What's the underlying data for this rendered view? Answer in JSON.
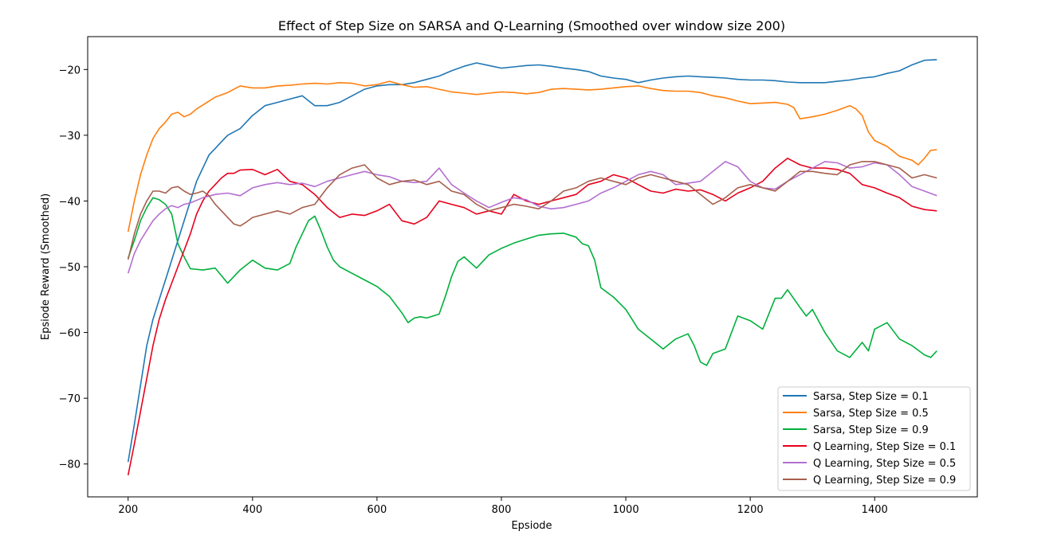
{
  "chart_data": {
    "type": "line",
    "title": "Effect of Step Size on SARSA and Q-Learning (Smoothed over window size 200)",
    "xlabel": "Epsiode",
    "ylabel": "Epsiode Reward (Smoothed)",
    "xlim": [
      135,
      1565
    ],
    "ylim": [
      -85,
      -15
    ],
    "xticks": [
      200,
      400,
      600,
      800,
      1000,
      1200,
      1400
    ],
    "yticks": [
      -80,
      -70,
      -60,
      -50,
      -40,
      -30,
      -20
    ],
    "xtick_labels": [
      "200",
      "400",
      "600",
      "800",
      "1000",
      "1200",
      "1400"
    ],
    "ytick_labels": [
      "−80",
      "−70",
      "−60",
      "−50",
      "−40",
      "−30",
      "−20"
    ],
    "grid": false,
    "legend_position": "lower right",
    "series": [
      {
        "name": "Sarsa, Step Size = 0.1",
        "color": "#1f77b4",
        "x": [
          200,
          210,
          220,
          230,
          240,
          250,
          260,
          270,
          280,
          290,
          300,
          310,
          320,
          330,
          340,
          350,
          360,
          370,
          380,
          400,
          420,
          440,
          460,
          480,
          500,
          520,
          540,
          560,
          580,
          600,
          620,
          640,
          660,
          680,
          700,
          720,
          740,
          760,
          780,
          800,
          820,
          840,
          860,
          880,
          900,
          920,
          940,
          960,
          980,
          1000,
          1020,
          1040,
          1060,
          1080,
          1100,
          1120,
          1140,
          1160,
          1180,
          1200,
          1220,
          1240,
          1260,
          1280,
          1300,
          1320,
          1340,
          1360,
          1380,
          1400,
          1420,
          1440,
          1460,
          1480,
          1500
        ],
        "y": [
          -79.7,
          -74,
          -68,
          -62,
          -58,
          -55,
          -52,
          -49,
          -46,
          -43,
          -40,
          -37,
          -35,
          -33,
          -32,
          -31,
          -30,
          -29.5,
          -29,
          -27,
          -25.5,
          -25,
          -24.5,
          -24,
          -25.5,
          -25.5,
          -25,
          -24,
          -23,
          -22.5,
          -22.3,
          -22.3,
          -22,
          -21.5,
          -21,
          -20.2,
          -19.5,
          -19,
          -19.4,
          -19.8,
          -19.6,
          -19.4,
          -19.3,
          -19.5,
          -19.8,
          -20,
          -20.3,
          -21,
          -21.3,
          -21.5,
          -22,
          -21.6,
          -21.3,
          -21.1,
          -21,
          -21.1,
          -21.2,
          -21.3,
          -21.5,
          -21.6,
          -21.6,
          -21.7,
          -21.9,
          -22,
          -22,
          -22,
          -21.8,
          -21.6,
          -21.3,
          -21.1,
          -20.6,
          -20.2,
          -19.3,
          -18.6,
          -18.5
        ]
      },
      {
        "name": "Sarsa, Step Size = 0.5",
        "color": "#ff7f0e",
        "x": [
          200,
          210,
          220,
          230,
          240,
          250,
          260,
          270,
          280,
          290,
          300,
          310,
          320,
          330,
          340,
          360,
          380,
          400,
          420,
          440,
          460,
          480,
          500,
          520,
          540,
          560,
          580,
          600,
          620,
          640,
          660,
          680,
          700,
          720,
          740,
          760,
          780,
          800,
          820,
          840,
          860,
          880,
          900,
          920,
          940,
          960,
          980,
          1000,
          1020,
          1040,
          1060,
          1080,
          1100,
          1120,
          1140,
          1160,
          1180,
          1200,
          1220,
          1240,
          1260,
          1270,
          1280,
          1300,
          1320,
          1340,
          1360,
          1370,
          1380,
          1390,
          1400,
          1420,
          1440,
          1460,
          1470,
          1480,
          1490,
          1500
        ],
        "y": [
          -44.7,
          -40,
          -36,
          -33,
          -30.5,
          -29,
          -28,
          -26.8,
          -26.5,
          -27.2,
          -26.8,
          -26,
          -25.4,
          -24.8,
          -24.2,
          -23.5,
          -22.5,
          -22.8,
          -22.8,
          -22.5,
          -22.4,
          -22.2,
          -22.1,
          -22.2,
          -22,
          -22.1,
          -22.5,
          -22.3,
          -21.8,
          -22.3,
          -22.7,
          -22.6,
          -23,
          -23.4,
          -23.6,
          -23.8,
          -23.6,
          -23.4,
          -23.5,
          -23.7,
          -23.5,
          -23.0,
          -22.9,
          -23.0,
          -23.1,
          -23.0,
          -22.8,
          -22.6,
          -22.5,
          -22.9,
          -23.2,
          -23.3,
          -23.3,
          -23.5,
          -24.0,
          -24.3,
          -24.8,
          -25.2,
          -25.1,
          -25.0,
          -25.3,
          -25.8,
          -27.5,
          -27.2,
          -26.8,
          -26.2,
          -25.5,
          -26.0,
          -27.0,
          -29.5,
          -30.8,
          -31.7,
          -33.2,
          -33.8,
          -34.5,
          -33.5,
          -32.3,
          -32.2
        ]
      },
      {
        "name": "Sarsa, Step Size = 0.9",
        "color": "#00b03c",
        "x": [
          200,
          210,
          220,
          230,
          240,
          250,
          260,
          270,
          280,
          290,
          300,
          320,
          340,
          360,
          380,
          400,
          420,
          440,
          460,
          470,
          480,
          490,
          500,
          510,
          520,
          530,
          540,
          560,
          580,
          600,
          620,
          640,
          650,
          660,
          670,
          680,
          700,
          710,
          720,
          730,
          740,
          760,
          780,
          800,
          820,
          840,
          860,
          880,
          900,
          920,
          930,
          940,
          950,
          960,
          980,
          1000,
          1020,
          1040,
          1060,
          1080,
          1100,
          1110,
          1120,
          1130,
          1140,
          1160,
          1170,
          1180,
          1200,
          1220,
          1240,
          1250,
          1260,
          1280,
          1290,
          1300,
          1320,
          1340,
          1360,
          1380,
          1390,
          1400,
          1420,
          1440,
          1460,
          1480,
          1490,
          1500
        ],
        "y": [
          -48.7,
          -46,
          -43,
          -41,
          -39.5,
          -39.8,
          -40.5,
          -42,
          -46.5,
          -48.5,
          -50.3,
          -50.5,
          -50.2,
          -52.5,
          -50.5,
          -49,
          -50.2,
          -50.5,
          -49.5,
          -47,
          -45,
          -43,
          -42.3,
          -44.5,
          -47,
          -49,
          -50.0,
          -51.0,
          -52.0,
          -53.0,
          -54.5,
          -57.0,
          -58.5,
          -57.8,
          -57.6,
          -57.8,
          -57.2,
          -54.5,
          -51.5,
          -49.2,
          -48.5,
          -50.2,
          -48.2,
          -47.2,
          -46.4,
          -45.8,
          -45.2,
          -45.0,
          -44.9,
          -45.5,
          -46.5,
          -46.8,
          -49.0,
          -53.2,
          -54.6,
          -56.5,
          -59.5,
          -61.0,
          -62.5,
          -61.0,
          -60.2,
          -62.0,
          -64.5,
          -65.0,
          -63.2,
          -62.5,
          -60.0,
          -57.5,
          -58.2,
          -59.5,
          -54.8,
          -54.8,
          -53.5,
          -56.2,
          -57.5,
          -56.5,
          -60.0,
          -62.8,
          -63.8,
          -61.5,
          -62.8,
          -59.5,
          -58.5,
          -61.0,
          -62.0,
          -63.4,
          -63.8,
          -62.8
        ]
      },
      {
        "name": "Q Learning, Step Size = 0.1",
        "color": "#e8001c",
        "x": [
          200,
          210,
          220,
          230,
          240,
          250,
          260,
          270,
          280,
          290,
          300,
          310,
          320,
          330,
          340,
          350,
          360,
          370,
          380,
          400,
          420,
          440,
          460,
          480,
          500,
          520,
          540,
          560,
          580,
          600,
          620,
          640,
          660,
          680,
          700,
          720,
          740,
          760,
          780,
          800,
          820,
          840,
          860,
          880,
          900,
          920,
          940,
          960,
          980,
          1000,
          1020,
          1040,
          1060,
          1080,
          1100,
          1120,
          1140,
          1160,
          1180,
          1200,
          1220,
          1240,
          1260,
          1280,
          1300,
          1320,
          1340,
          1360,
          1380,
          1400,
          1420,
          1440,
          1460,
          1480,
          1500
        ],
        "y": [
          -81.7,
          -77,
          -72,
          -67,
          -62,
          -58,
          -55,
          -52.5,
          -50,
          -47.5,
          -45,
          -42,
          -40,
          -38.5,
          -37.5,
          -36.5,
          -35.8,
          -35.8,
          -35.3,
          -35.2,
          -36.0,
          -35.2,
          -37.0,
          -37.5,
          -39.0,
          -41.0,
          -42.5,
          -42.0,
          -42.2,
          -41.5,
          -40.5,
          -43.0,
          -43.5,
          -42.5,
          -40.0,
          -40.5,
          -41.0,
          -42.0,
          -41.5,
          -42.0,
          -39.0,
          -40.0,
          -40.5,
          -40.0,
          -39.5,
          -39.0,
          -37.5,
          -37.0,
          -36.0,
          -36.5,
          -37.5,
          -38.5,
          -38.8,
          -38.2,
          -38.5,
          -38.3,
          -39.0,
          -40.0,
          -38.8,
          -38.0,
          -37.0,
          -35.0,
          -33.5,
          -34.5,
          -35.0,
          -35.0,
          -35.2,
          -35.8,
          -37.5,
          -38.0,
          -38.8,
          -39.5,
          -40.8,
          -41.3,
          -41.5
        ]
      },
      {
        "name": "Q Learning, Step Size = 0.5",
        "color": "#b36fd0",
        "x": [
          200,
          210,
          220,
          230,
          240,
          250,
          260,
          270,
          280,
          290,
          300,
          320,
          340,
          360,
          380,
          400,
          420,
          440,
          460,
          480,
          500,
          520,
          540,
          560,
          580,
          600,
          620,
          640,
          660,
          680,
          700,
          720,
          740,
          760,
          780,
          800,
          820,
          840,
          860,
          880,
          900,
          920,
          940,
          960,
          980,
          1000,
          1020,
          1040,
          1060,
          1080,
          1100,
          1120,
          1140,
          1160,
          1180,
          1200,
          1220,
          1240,
          1260,
          1280,
          1300,
          1320,
          1340,
          1360,
          1380,
          1400,
          1420,
          1440,
          1460,
          1480,
          1500
        ],
        "y": [
          -51,
          -48,
          -46,
          -44.5,
          -43,
          -42,
          -41.2,
          -40.7,
          -41,
          -40.5,
          -40.3,
          -39.5,
          -39.0,
          -38.8,
          -39.2,
          -38.0,
          -37.5,
          -37.2,
          -37.5,
          -37.3,
          -37.8,
          -37.0,
          -36.5,
          -36.0,
          -35.5,
          -36.0,
          -36.3,
          -37.0,
          -37.2,
          -37.0,
          -35.0,
          -37.5,
          -38.8,
          -40.0,
          -41.0,
          -40.2,
          -39.5,
          -39.8,
          -40.8,
          -41.2,
          -41.0,
          -40.5,
          -40.0,
          -38.8,
          -38.0,
          -37.0,
          -36.0,
          -35.5,
          -36.0,
          -37.5,
          -37.3,
          -37.0,
          -35.5,
          -34.0,
          -34.8,
          -37.0,
          -38.0,
          -38.2,
          -37.0,
          -36.0,
          -35.0,
          -34.0,
          -34.2,
          -35.0,
          -34.8,
          -34.2,
          -34.5,
          -36.0,
          -37.8,
          -38.5,
          -39.2
        ]
      },
      {
        "name": "Q Learning, Step Size = 0.9",
        "color": "#a65f4c",
        "x": [
          200,
          210,
          220,
          230,
          240,
          250,
          260,
          270,
          280,
          290,
          300,
          310,
          320,
          330,
          340,
          350,
          360,
          370,
          380,
          390,
          400,
          420,
          440,
          460,
          480,
          500,
          520,
          540,
          560,
          580,
          600,
          620,
          640,
          660,
          680,
          700,
          720,
          740,
          760,
          780,
          800,
          820,
          840,
          860,
          880,
          900,
          920,
          940,
          960,
          980,
          1000,
          1020,
          1040,
          1060,
          1080,
          1100,
          1120,
          1140,
          1160,
          1180,
          1200,
          1220,
          1240,
          1260,
          1280,
          1300,
          1320,
          1340,
          1360,
          1380,
          1400,
          1420,
          1440,
          1460,
          1480,
          1500
        ],
        "y": [
          -48.9,
          -45,
          -42,
          -40,
          -38.5,
          -38.5,
          -38.8,
          -38.0,
          -37.8,
          -38.5,
          -39.0,
          -38.8,
          -38.5,
          -39.2,
          -40.5,
          -41.5,
          -42.5,
          -43.5,
          -43.8,
          -43.2,
          -42.5,
          -42.0,
          -41.5,
          -42.0,
          -41.0,
          -40.5,
          -38.0,
          -36.0,
          -35.0,
          -34.5,
          -36.5,
          -37.5,
          -37.0,
          -36.8,
          -37.5,
          -37.0,
          -38.5,
          -39.0,
          -40.5,
          -41.5,
          -41.0,
          -40.5,
          -40.8,
          -41.2,
          -40.0,
          -38.5,
          -38.0,
          -37.0,
          -36.5,
          -37.0,
          -37.5,
          -36.5,
          -36.0,
          -36.5,
          -37.0,
          -37.5,
          -39.0,
          -40.5,
          -39.5,
          -38.0,
          -37.5,
          -38.0,
          -38.5,
          -37.0,
          -35.5,
          -35.5,
          -35.8,
          -36.0,
          -34.5,
          -34.0,
          -34.0,
          -34.5,
          -35.0,
          -36.5,
          -36.0,
          -36.5
        ]
      }
    ]
  }
}
